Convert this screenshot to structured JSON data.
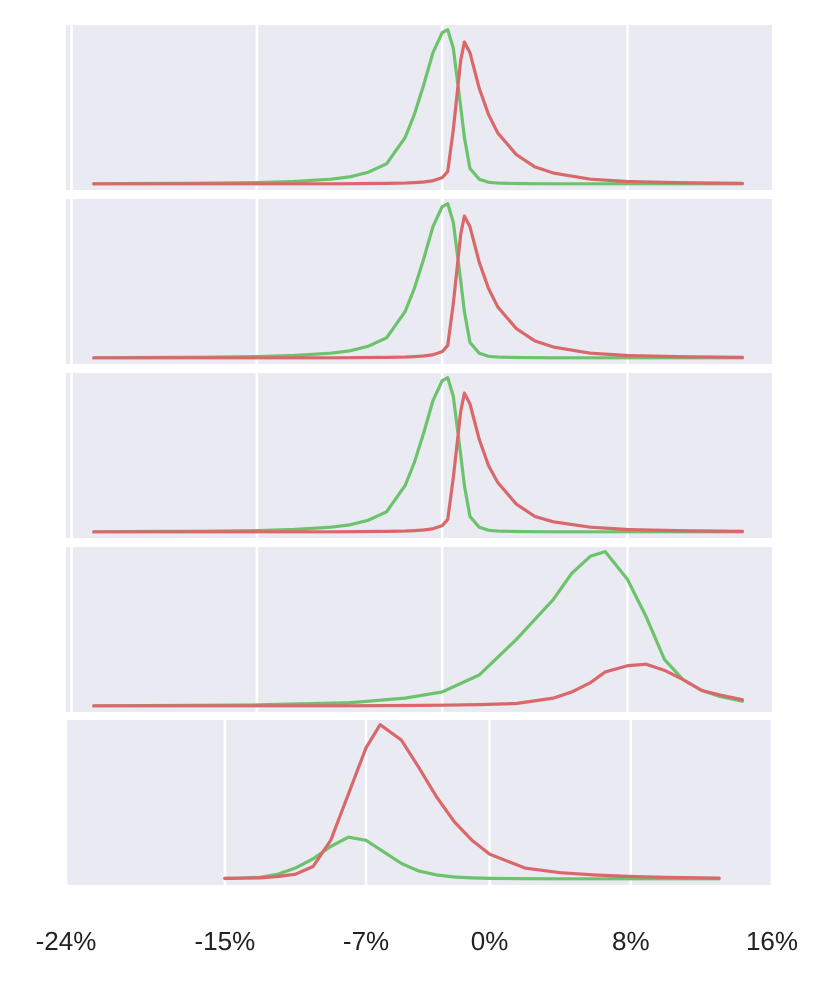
{
  "chart_data": [
    {
      "type": "line",
      "xlim": [
        -20.3,
        17.8
      ],
      "xticks": [
        -20,
        -10,
        0,
        10
      ],
      "ylim": [
        -0.04,
        1.03
      ],
      "grid": true,
      "show_tick_labels": false,
      "x": [
        -18.8,
        -16,
        -13,
        -10,
        -8,
        -6,
        -5,
        -4,
        -3,
        -2,
        -1.5,
        -1,
        -0.5,
        0,
        0.3,
        0.6,
        1,
        1.2,
        1.5,
        2,
        2.5,
        3,
        4,
        5,
        6,
        8,
        10,
        13,
        16.2
      ],
      "series": [
        {
          "color": "#6cc36c",
          "values": [
            0,
            0.002,
            0.004,
            0.008,
            0.015,
            0.03,
            0.045,
            0.075,
            0.13,
            0.3,
            0.45,
            0.64,
            0.85,
            0.98,
            1.0,
            0.88,
            0.5,
            0.3,
            0.1,
            0.03,
            0.01,
            0.005,
            0.002,
            0.001,
            0,
            0,
            0,
            0,
            0
          ]
        },
        {
          "color": "#d9686a",
          "values": [
            0,
            0,
            0,
            0,
            0,
            0,
            0.001,
            0.002,
            0.003,
            0.005,
            0.008,
            0.012,
            0.02,
            0.04,
            0.08,
            0.35,
            0.8,
            0.92,
            0.85,
            0.62,
            0.45,
            0.33,
            0.19,
            0.11,
            0.07,
            0.03,
            0.015,
            0.007,
            0.003
          ]
        }
      ]
    },
    {
      "type": "line",
      "xlim": [
        -20.3,
        17.8
      ],
      "xticks": [
        -20,
        -10,
        0,
        10
      ],
      "ylim": [
        -0.04,
        1.03
      ],
      "grid": true,
      "show_tick_labels": false,
      "x": [
        -18.8,
        -16,
        -13,
        -10,
        -8,
        -6,
        -5,
        -4,
        -3,
        -2,
        -1.5,
        -1,
        -0.5,
        0,
        0.3,
        0.6,
        1,
        1.2,
        1.5,
        2,
        2.5,
        3,
        4,
        5,
        6,
        8,
        10,
        13,
        16.2
      ],
      "series": [
        {
          "color": "#6cc36c",
          "values": [
            0,
            0.002,
            0.004,
            0.008,
            0.015,
            0.03,
            0.045,
            0.075,
            0.13,
            0.3,
            0.45,
            0.64,
            0.85,
            0.98,
            1.0,
            0.88,
            0.5,
            0.3,
            0.1,
            0.03,
            0.01,
            0.005,
            0.002,
            0.001,
            0,
            0,
            0,
            0,
            0
          ]
        },
        {
          "color": "#d9686a",
          "values": [
            0,
            0,
            0,
            0,
            0,
            0,
            0.001,
            0.002,
            0.003,
            0.005,
            0.008,
            0.012,
            0.02,
            0.04,
            0.08,
            0.35,
            0.8,
            0.92,
            0.85,
            0.62,
            0.45,
            0.33,
            0.19,
            0.11,
            0.07,
            0.03,
            0.015,
            0.007,
            0.003
          ]
        }
      ]
    },
    {
      "type": "line",
      "xlim": [
        -20.3,
        17.8
      ],
      "xticks": [
        -20,
        -10,
        0,
        10
      ],
      "ylim": [
        -0.04,
        1.03
      ],
      "grid": true,
      "show_tick_labels": false,
      "x": [
        -18.8,
        -16,
        -13,
        -10,
        -8,
        -6,
        -5,
        -4,
        -3,
        -2,
        -1.5,
        -1,
        -0.5,
        0,
        0.3,
        0.6,
        1,
        1.2,
        1.5,
        2,
        2.5,
        3,
        4,
        5,
        6,
        8,
        10,
        13,
        16.2
      ],
      "series": [
        {
          "color": "#6cc36c",
          "values": [
            0,
            0.002,
            0.004,
            0.008,
            0.015,
            0.03,
            0.045,
            0.075,
            0.13,
            0.3,
            0.45,
            0.64,
            0.85,
            0.98,
            1.0,
            0.88,
            0.5,
            0.3,
            0.1,
            0.03,
            0.01,
            0.005,
            0.002,
            0.001,
            0,
            0,
            0,
            0,
            0
          ]
        },
        {
          "color": "#d9686a",
          "values": [
            0,
            0,
            0,
            0,
            0,
            0,
            0.001,
            0.002,
            0.003,
            0.005,
            0.008,
            0.012,
            0.02,
            0.04,
            0.08,
            0.35,
            0.78,
            0.9,
            0.83,
            0.6,
            0.43,
            0.32,
            0.18,
            0.1,
            0.065,
            0.03,
            0.015,
            0.007,
            0.003
          ]
        }
      ]
    },
    {
      "type": "line",
      "xlim": [
        -20.3,
        17.8
      ],
      "xticks": [
        -20,
        -10,
        0,
        10
      ],
      "ylim": [
        -0.04,
        1.03
      ],
      "grid": true,
      "show_tick_labels": false,
      "x": [
        -18.8,
        -15,
        -10,
        -5,
        -2,
        0,
        2,
        4,
        6,
        7,
        8,
        8.8,
        10,
        11,
        12,
        13,
        14,
        15,
        16.2
      ],
      "series": [
        {
          "color": "#6cc36c",
          "values": [
            0,
            0.002,
            0.006,
            0.02,
            0.05,
            0.09,
            0.2,
            0.43,
            0.69,
            0.86,
            0.97,
            1.0,
            0.82,
            0.58,
            0.3,
            0.17,
            0.1,
            0.06,
            0.03
          ]
        },
        {
          "color": "#d9686a",
          "values": [
            0,
            0,
            0,
            0,
            0.002,
            0.004,
            0.008,
            0.015,
            0.05,
            0.09,
            0.15,
            0.22,
            0.26,
            0.27,
            0.23,
            0.17,
            0.1,
            0.07,
            0.04
          ]
        }
      ]
    },
    {
      "type": "line",
      "xlim": [
        -24,
        16
      ],
      "ylim": [
        -0.04,
        1.03
      ],
      "grid": true,
      "show_tick_labels": true,
      "xticks": [
        {
          "value": -24,
          "label": "-24%"
        },
        {
          "value": -15,
          "label": "-15%"
        },
        {
          "value": -7,
          "label": "-7%"
        },
        {
          "value": 0,
          "label": "0%"
        },
        {
          "value": 8,
          "label": "8%"
        },
        {
          "value": 16,
          "label": "16%"
        }
      ],
      "x": [
        -15,
        -13,
        -12,
        -11,
        -10,
        -9,
        -8,
        -7,
        -6.2,
        -5,
        -4,
        -3,
        -2,
        -1,
        0,
        2,
        4,
        6,
        8,
        10,
        13
      ],
      "series": [
        {
          "color": "#6cc36c",
          "values": [
            0.002,
            0.01,
            0.03,
            0.07,
            0.13,
            0.21,
            0.27,
            0.25,
            0.19,
            0.1,
            0.05,
            0.025,
            0.012,
            0.006,
            0.003,
            0.001,
            0,
            0,
            0,
            0,
            0
          ]
        },
        {
          "color": "#d9686a",
          "values": [
            0.003,
            0.006,
            0.015,
            0.03,
            0.08,
            0.25,
            0.55,
            0.85,
            1.0,
            0.9,
            0.72,
            0.53,
            0.37,
            0.25,
            0.16,
            0.07,
            0.04,
            0.025,
            0.015,
            0.01,
            0.005
          ]
        }
      ]
    }
  ]
}
